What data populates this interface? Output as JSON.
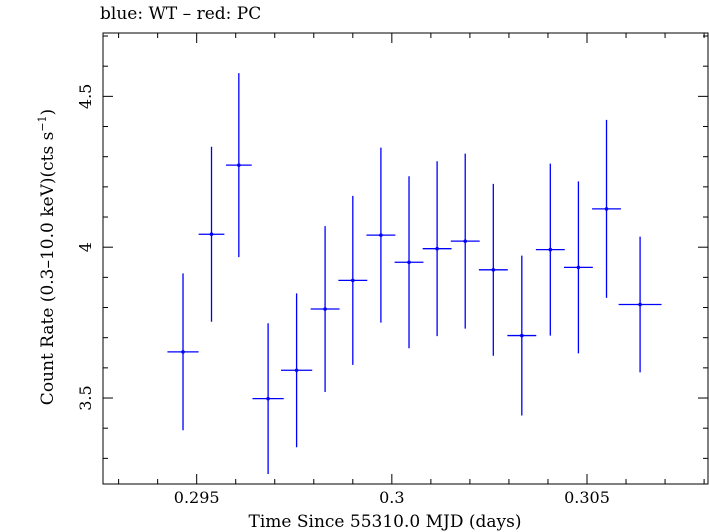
{
  "chart_data": {
    "type": "scatter",
    "title": "blue: WT – red: PC",
    "xlabel": "Time Since 55310.0 MJD (days)",
    "ylabel": "Count Rate (0.3–10.0 keV)(cts s",
    "ylabel_sup": "−1",
    "ylabel_tail": ")",
    "xlim": [
      0.2926,
      0.3081
    ],
    "ylim": [
      3.215,
      4.71
    ],
    "x_ticks": [
      0.295,
      0.3,
      0.305
    ],
    "x_tick_labels": [
      "0.295",
      "0.3",
      "0.305"
    ],
    "y_ticks": [
      3.5,
      4.0,
      4.5
    ],
    "y_tick_labels": [
      "3.5",
      "4",
      "4.5"
    ],
    "grid": false,
    "series": [
      {
        "name": "WT",
        "color": "#0000ff",
        "points": [
          {
            "x": 0.29465,
            "xerr": 0.0004,
            "y": 3.653,
            "yerr": 0.26
          },
          {
            "x": 0.29538,
            "xerr": 0.00033,
            "y": 4.043,
            "yerr": 0.29
          },
          {
            "x": 0.29608,
            "xerr": 0.00033,
            "y": 4.272,
            "yerr": 0.305
          },
          {
            "x": 0.29683,
            "xerr": 0.0004,
            "y": 3.498,
            "yerr": 0.25
          },
          {
            "x": 0.29756,
            "xerr": 0.0004,
            "y": 3.592,
            "yerr": 0.255
          },
          {
            "x": 0.29829,
            "xerr": 0.00037,
            "y": 3.795,
            "yerr": 0.275
          },
          {
            "x": 0.299,
            "xerr": 0.00037,
            "y": 3.89,
            "yerr": 0.28
          },
          {
            "x": 0.29972,
            "xerr": 0.00037,
            "y": 4.04,
            "yerr": 0.29
          },
          {
            "x": 0.30044,
            "xerr": 0.00037,
            "y": 3.95,
            "yerr": 0.285
          },
          {
            "x": 0.30116,
            "xerr": 0.00037,
            "y": 3.995,
            "yerr": 0.29
          },
          {
            "x": 0.30188,
            "xerr": 0.00037,
            "y": 4.02,
            "yerr": 0.29
          },
          {
            "x": 0.3026,
            "xerr": 0.00037,
            "y": 3.925,
            "yerr": 0.285
          },
          {
            "x": 0.30333,
            "xerr": 0.00037,
            "y": 3.707,
            "yerr": 0.265
          },
          {
            "x": 0.30406,
            "xerr": 0.00037,
            "y": 3.992,
            "yerr": 0.285
          },
          {
            "x": 0.30478,
            "xerr": 0.00037,
            "y": 3.933,
            "yerr": 0.285
          },
          {
            "x": 0.3055,
            "xerr": 0.00037,
            "y": 4.127,
            "yerr": 0.295
          },
          {
            "x": 0.30636,
            "xerr": 0.00055,
            "y": 3.81,
            "yerr": 0.225
          }
        ]
      }
    ]
  }
}
